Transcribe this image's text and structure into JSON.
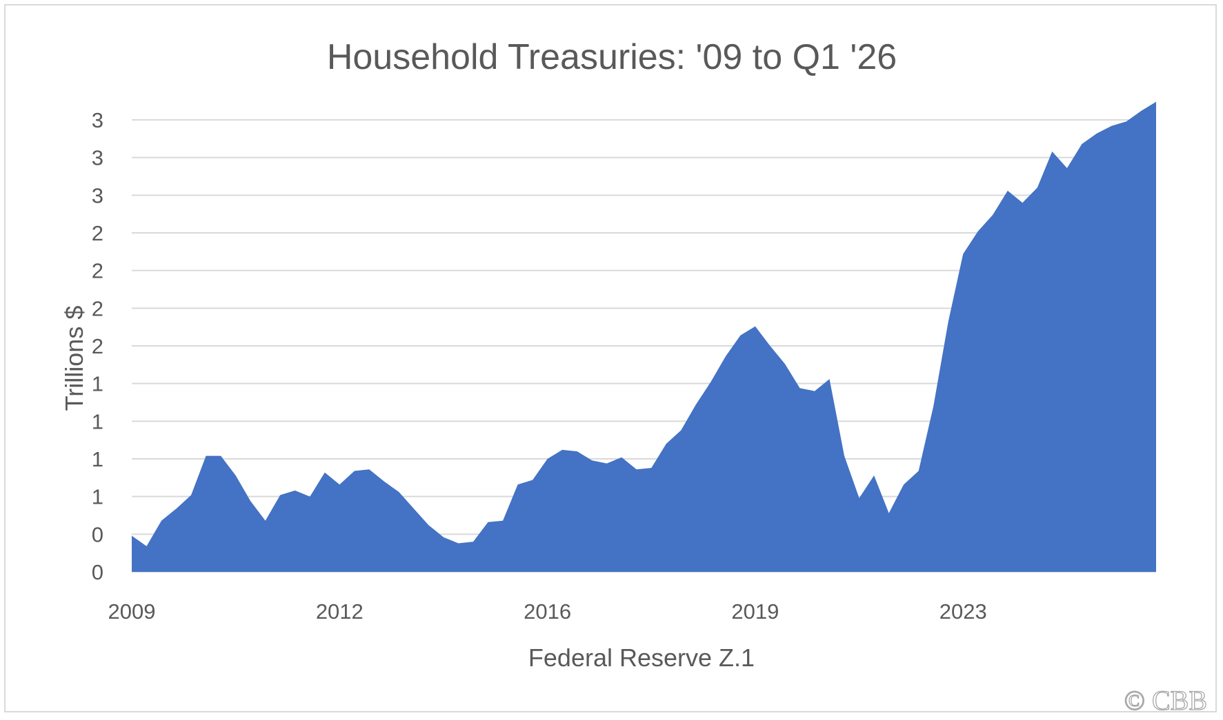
{
  "chart_data": {
    "type": "area",
    "title": "Household Treasuries: '09 to Q1 '26",
    "xlabel": "Federal Reserve Z.1",
    "ylabel": "Trillions $",
    "y_tick_labels": [
      "0",
      "0",
      "1",
      "1",
      "1",
      "1",
      "2",
      "2",
      "2",
      "2",
      "3",
      "3",
      "3"
    ],
    "ylim": [
      0,
      3.0
    ],
    "y_tick_step": 0.25,
    "x_tick_labels": [
      {
        "label": "2009",
        "index": 0
      },
      {
        "label": "2012",
        "index": 14
      },
      {
        "label": "2016",
        "index": 28
      },
      {
        "label": "2019",
        "index": 42
      },
      {
        "label": "2023",
        "index": 56
      }
    ],
    "grid": true,
    "legend": "none",
    "series": [
      {
        "values": [
          0.24,
          0.17,
          0.34,
          0.42,
          0.51,
          0.77,
          0.77,
          0.64,
          0.47,
          0.34,
          0.51,
          0.54,
          0.5,
          0.66,
          0.58,
          0.67,
          0.68,
          0.6,
          0.53,
          0.42,
          0.31,
          0.23,
          0.19,
          0.2,
          0.33,
          0.34,
          0.58,
          0.61,
          0.75,
          0.81,
          0.8,
          0.74,
          0.72,
          0.76,
          0.68,
          0.69,
          0.85,
          0.94,
          1.11,
          1.26,
          1.43,
          1.57,
          1.63,
          1.5,
          1.38,
          1.22,
          1.2,
          1.28,
          0.77,
          0.49,
          0.64,
          0.39,
          0.58,
          0.67,
          1.1,
          1.66,
          2.11,
          2.26,
          2.37,
          2.53,
          2.45,
          2.55,
          2.79,
          2.68,
          2.84,
          2.91,
          2.96,
          2.99,
          3.06,
          3.12
        ]
      }
    ],
    "colors": {
      "area": "#4472c4",
      "grid": "#d9d9d9",
      "text": "#595959"
    }
  },
  "watermark": "© CBB"
}
